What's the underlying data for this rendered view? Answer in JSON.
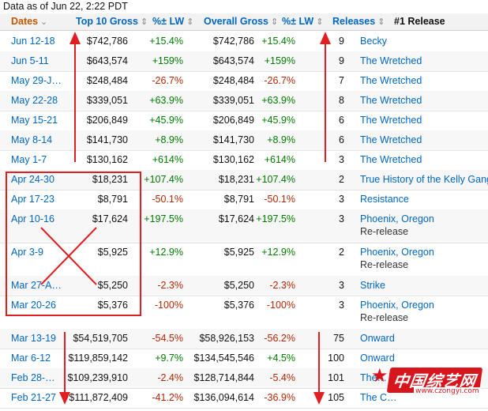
{
  "as_of": "Data as of Jun 22, 2:22 PDT",
  "headers": {
    "dates": "Dates",
    "top10": "Top 10 Gross",
    "lw1": "%± LW",
    "overall": "Overall Gross",
    "lw2": "%± LW",
    "releases": "Releases",
    "release1": "#1 Release"
  },
  "rows": [
    {
      "date": "Jun 12-18",
      "top10": "$742,786",
      "lw1": "+15.4%",
      "overall": "$742,786",
      "lw2": "+15.4%",
      "releases": "9",
      "release": "Becky"
    },
    {
      "date": "Jun 5-11",
      "top10": "$643,574",
      "lw1": "+159%",
      "overall": "$643,574",
      "lw2": "+159%",
      "releases": "9",
      "release": "The Wretched"
    },
    {
      "date": "May 29-J…",
      "top10": "$248,484",
      "lw1": "-26.7%",
      "overall": "$248,484",
      "lw2": "-26.7%",
      "releases": "7",
      "release": "The Wretched"
    },
    {
      "date": "May 22-28",
      "top10": "$339,051",
      "lw1": "+63.9%",
      "overall": "$339,051",
      "lw2": "+63.9%",
      "releases": "8",
      "release": "The Wretched"
    },
    {
      "date": "May 15-21",
      "top10": "$206,849",
      "lw1": "+45.9%",
      "overall": "$206,849",
      "lw2": "+45.9%",
      "releases": "6",
      "release": "The Wretched"
    },
    {
      "date": "May 8-14",
      "top10": "$141,730",
      "lw1": "+8.9%",
      "overall": "$141,730",
      "lw2": "+8.9%",
      "releases": "6",
      "release": "The Wretched"
    },
    {
      "date": "May 1-7",
      "top10": "$130,162",
      "lw1": "+614%",
      "overall": "$130,162",
      "lw2": "+614%",
      "releases": "3",
      "release": "The Wretched"
    },
    {
      "date": "Apr 24-30",
      "top10": "$18,231",
      "lw1": "+107.4%",
      "overall": "$18,231",
      "lw2": "+107.4%",
      "releases": "2",
      "release": "True History of the Kelly Gang"
    },
    {
      "date": "Apr 17-23",
      "top10": "$8,791",
      "lw1": "-50.1%",
      "overall": "$8,791",
      "lw2": "-50.1%",
      "releases": "3",
      "release": "Resistance"
    },
    {
      "date": "Apr 10-16",
      "top10": "$17,624",
      "lw1": "+197.5%",
      "overall": "$17,624",
      "lw2": "+197.5%",
      "releases": "3",
      "release": "Phoenix, Oregon",
      "sub": "Re-release"
    },
    {
      "date": "Apr 3-9",
      "top10": "$5,925",
      "lw1": "+12.9%",
      "overall": "$5,925",
      "lw2": "+12.9%",
      "releases": "2",
      "release": "Phoenix, Oregon",
      "sub": "Re-release"
    },
    {
      "date": "Mar 27-A…",
      "top10": "$5,250",
      "lw1": "-2.3%",
      "overall": "$5,250",
      "lw2": "-2.3%",
      "releases": "3",
      "release": "Strike"
    },
    {
      "date": "Mar 20-26",
      "top10": "$5,376",
      "lw1": "-100%",
      "overall": "$5,376",
      "lw2": "-100%",
      "releases": "3",
      "release": "Phoenix, Oregon",
      "sub": "Re-release"
    },
    {
      "date": "Mar 13-19",
      "top10": "$54,519,705",
      "lw1": "-54.5%",
      "overall": "$58,926,153",
      "lw2": "-56.2%",
      "releases": "75",
      "release": "Onward"
    },
    {
      "date": "Mar 6-12",
      "top10": "$119,859,142",
      "lw1": "+9.7%",
      "overall": "$134,545,546",
      "lw2": "+4.5%",
      "releases": "100",
      "release": "Onward"
    },
    {
      "date": "Feb 28-…",
      "top10": "$109,239,910",
      "lw1": "-2.4%",
      "overall": "$128,714,844",
      "lw2": "-5.4%",
      "releases": "101",
      "release": "The…"
    },
    {
      "date": "Feb 21-27",
      "top10": "$111,872,409",
      "lw1": "-41.2%",
      "overall": "$136,094,614",
      "lw2": "-36.9%",
      "releases": "105",
      "release": "The C…"
    }
  ],
  "watermark": {
    "text": "中国综艺网",
    "url": "www.czongyi.com"
  },
  "colors": {
    "link": "#0066c0",
    "active_header": "#c45500",
    "positive": "#007a00",
    "negative": "#b12704",
    "annotation": "#e02020"
  }
}
